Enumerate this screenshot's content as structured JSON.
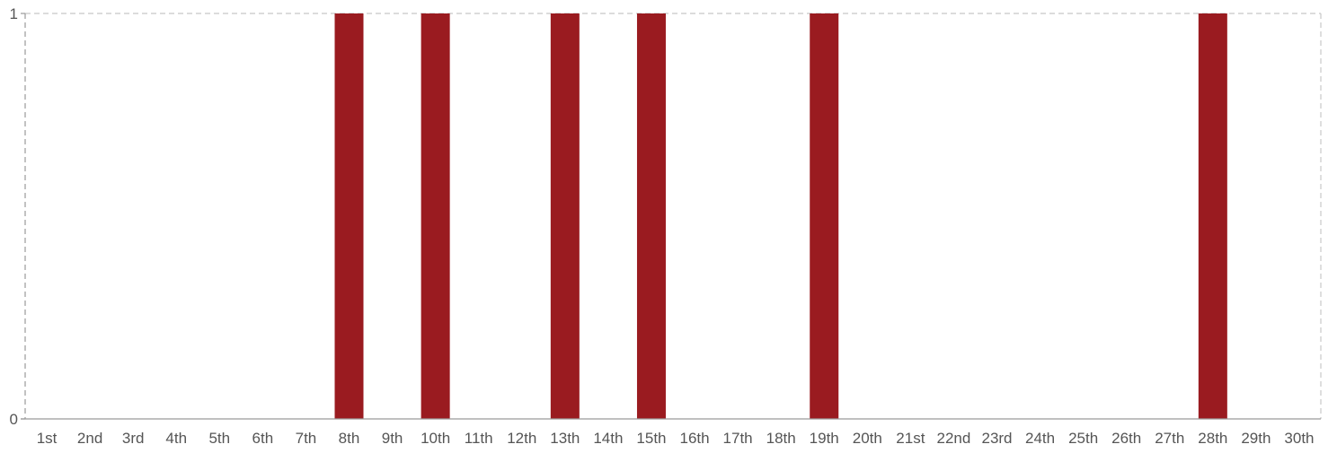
{
  "chart_data": {
    "type": "bar",
    "categories": [
      "1st",
      "2nd",
      "3rd",
      "4th",
      "5th",
      "6th",
      "7th",
      "8th",
      "9th",
      "10th",
      "11th",
      "12th",
      "13th",
      "14th",
      "15th",
      "16th",
      "17th",
      "18th",
      "19th",
      "20th",
      "21st",
      "22nd",
      "23rd",
      "24th",
      "25th",
      "26th",
      "27th",
      "28th",
      "29th",
      "30th"
    ],
    "values": [
      0,
      0,
      0,
      0,
      0,
      0,
      0,
      1,
      0,
      1,
      0,
      0,
      1,
      0,
      1,
      0,
      0,
      0,
      1,
      0,
      0,
      0,
      0,
      0,
      0,
      0,
      0,
      1,
      0,
      0
    ],
    "ylim": [
      0,
      1
    ],
    "yticks": [
      0,
      1
    ],
    "grid": true,
    "colors": {
      "bar": "#9a1b20",
      "grid": "#c8c8c8",
      "axis": "#9a9a9a",
      "tick_text": "#555555"
    }
  }
}
